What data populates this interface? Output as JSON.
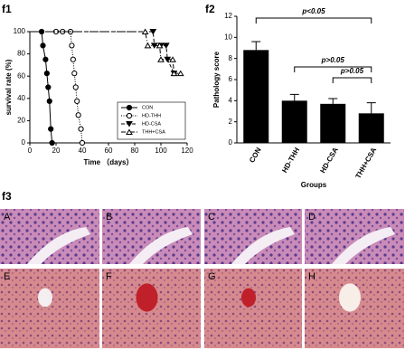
{
  "figure_labels": [
    "f1",
    "f2",
    "f3"
  ],
  "image_labels": [
    "A",
    "B",
    "C",
    "D",
    "E",
    "F",
    "G",
    "H"
  ],
  "chart_data": [
    {
      "type": "line",
      "xlabel": "Time （days）",
      "ylabel": "survival rate (%)",
      "xlim": [
        0,
        120
      ],
      "xticks": [
        0,
        20,
        40,
        60,
        80,
        100,
        120
      ],
      "ylim": [
        0,
        100
      ],
      "yticks": [
        0,
        20,
        40,
        60,
        80,
        100
      ],
      "legend": "lower right",
      "series": [
        {
          "name": "CON",
          "color": "#000000",
          "marker": "filled-circle",
          "dash": "solid",
          "x": [
            0,
            9,
            10,
            12,
            13,
            14,
            15,
            16,
            17
          ],
          "values": [
            100,
            100,
            87.5,
            75,
            62.5,
            50,
            37.5,
            12.5,
            0
          ]
        },
        {
          "name": "HD-THH",
          "color": "#000000",
          "marker": "open-circle",
          "dash": "dotted",
          "x": [
            0,
            20,
            25,
            31,
            32,
            33,
            34,
            35,
            36,
            37,
            39,
            40
          ],
          "values": [
            100,
            100,
            100,
            100,
            87.5,
            75,
            62.5,
            50,
            37.5,
            25,
            12.5,
            0
          ]
        },
        {
          "name": "HD-CSA",
          "color": "#000000",
          "marker": "filled-triangle",
          "dash": "dashed",
          "x": [
            0,
            94,
            95,
            100,
            104,
            105,
            110
          ],
          "values": [
            100,
            100,
            87.5,
            87.5,
            87.5,
            75,
            62.5
          ]
        },
        {
          "name": "THH+CSA",
          "color": "#000000",
          "marker": "open-triangle",
          "dash": "dashdot",
          "x": [
            0,
            88,
            90,
            99,
            100,
            109,
            110,
            115
          ],
          "values": [
            100,
            100,
            87.5,
            87.5,
            75,
            75,
            62.5,
            62.5
          ]
        }
      ]
    },
    {
      "type": "bar",
      "xlabel": "Groups",
      "ylabel": "Pathology score",
      "color": "#000000",
      "categories": [
        "CON",
        "HD-THH",
        "HD-CSA",
        "THH+CSA"
      ],
      "values": [
        8.8,
        4.0,
        3.7,
        2.8
      ],
      "errors": [
        0.8,
        0.6,
        0.5,
        1.0
      ],
      "ylim": [
        0,
        12
      ],
      "yticks": [
        0,
        2,
        4,
        6,
        8,
        10,
        12
      ],
      "annotations": [
        "p<0.05",
        "p>0.05",
        "p>0.05"
      ]
    }
  ]
}
